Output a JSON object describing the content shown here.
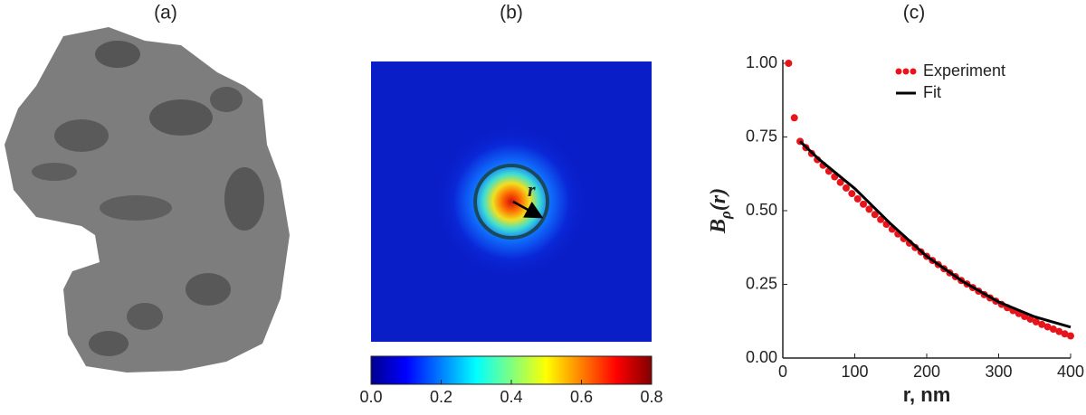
{
  "chart_data": [
    {
      "type": "image",
      "title": "(a)"
    },
    {
      "type": "heatmap",
      "title": "(b)",
      "annotation": "r",
      "colormap": "jet",
      "clim": [
        0,
        0.8
      ],
      "cticks": [
        {
          "value": 0,
          "label": "0.0"
        },
        {
          "value": 0.2,
          "label": "0.2"
        },
        {
          "value": 0.4,
          "label": "0.4"
        },
        {
          "value": 0.6,
          "label": "0.6"
        },
        {
          "value": 0.8,
          "label": "0.8"
        }
      ]
    },
    {
      "type": "scatter",
      "title": "(c)",
      "xlabel": "r, nm",
      "ylabel": {
        "main": "B",
        "sub": "ρ",
        "rest": "(r)"
      },
      "xlim": [
        0,
        400
      ],
      "xticks": [
        0,
        100,
        200,
        300,
        400
      ],
      "ylim": [
        0,
        1.0
      ],
      "yticks": [
        {
          "value": 0,
          "label": "0.00"
        },
        {
          "value": 0.25,
          "label": "0.25"
        },
        {
          "value": 0.5,
          "label": "0.50"
        },
        {
          "value": 0.75,
          "label": "0.75"
        },
        {
          "value": 1.0,
          "label": "1.00"
        }
      ],
      "legend": "upper right",
      "series": [
        {
          "name": "Experiment",
          "mode": "markers",
          "color": "#e8141c",
          "x": [
            8,
            16,
            24,
            32,
            40,
            48,
            56,
            64,
            72,
            80,
            88,
            96,
            104,
            112,
            120,
            128,
            136,
            144,
            152,
            160,
            168,
            176,
            184,
            192,
            200,
            208,
            216,
            224,
            232,
            240,
            248,
            256,
            264,
            272,
            280,
            288,
            296,
            304,
            312,
            320,
            328,
            336,
            344,
            352,
            360,
            368,
            376,
            384,
            392,
            400
          ],
          "values": [
            1.0,
            0.815,
            0.735,
            0.714,
            0.694,
            0.673,
            0.654,
            0.634,
            0.615,
            0.596,
            0.577,
            0.558,
            0.54,
            0.522,
            0.505,
            0.487,
            0.47,
            0.454,
            0.437,
            0.421,
            0.405,
            0.39,
            0.375,
            0.36,
            0.345,
            0.331,
            0.317,
            0.303,
            0.289,
            0.276,
            0.263,
            0.251,
            0.239,
            0.227,
            0.215,
            0.204,
            0.193,
            0.182,
            0.171,
            0.161,
            0.151,
            0.141,
            0.132,
            0.123,
            0.114,
            0.106,
            0.098,
            0.09,
            0.082,
            0.075
          ]
        },
        {
          "name": "Fit",
          "mode": "line",
          "color": "#000000",
          "x": [
            24,
            50,
            100,
            150,
            200,
            250,
            300,
            350,
            400
          ],
          "values": [
            0.735,
            0.675,
            0.575,
            0.455,
            0.345,
            0.26,
            0.19,
            0.14,
            0.105
          ]
        }
      ]
    }
  ]
}
